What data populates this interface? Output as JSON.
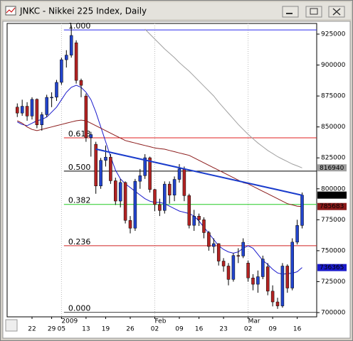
{
  "chart_data": {
    "type": "candlestick",
    "title": "JNKC - Nikkei 225 Index, Daily",
    "up_color": "#2244cc",
    "down_color": "#b22222",
    "open": [
      866000,
      861200,
      866700,
      858800,
      872300,
      851700,
      859900,
      873900,
      874000,
      886000,
      904300,
      908000,
      918000,
      887600,
      875000,
      841300,
      836000,
      802300,
      823000,
      825600,
      806500,
      790100,
      805100,
      774500,
      768200,
      806100,
      810600,
      825100,
      799400,
      787300,
      782500,
      803800,
      794900,
      807600,
      816100,
      794500,
      770500,
      777900,
      775000,
      764600,
      753400,
      755700,
      741600,
      737600,
      726800,
      746100,
      745700,
      740000,
      728000,
      722900,
      729000,
      737000,
      717300,
      708600,
      705400,
      737600,
      719800,
      756900,
      770400
    ],
    "high": [
      869000,
      872000,
      870000,
      874000,
      873000,
      862000,
      876000,
      878000,
      888000,
      906000,
      912000,
      932000,
      920000,
      889000,
      877000,
      846000,
      838000,
      825000,
      835000,
      828000,
      809000,
      808000,
      806000,
      778000,
      808000,
      816000,
      828000,
      826000,
      800000,
      792000,
      806000,
      806000,
      810000,
      820000,
      818000,
      796000,
      783000,
      780000,
      777000,
      766000,
      760000,
      756000,
      744000,
      740000,
      748000,
      752000,
      760000,
      742000,
      731000,
      734000,
      746000,
      740000,
      722000,
      712000,
      740000,
      739000,
      760000,
      775000,
      797000
    ],
    "low": [
      858000,
      859000,
      855000,
      856000,
      849000,
      847000,
      858000,
      866000,
      871000,
      884000,
      898000,
      906000,
      885000,
      874000,
      838000,
      826000,
      796000,
      800000,
      818000,
      804000,
      787000,
      785000,
      772000,
      764000,
      766000,
      800000,
      808000,
      797000,
      782000,
      778000,
      780000,
      788000,
      790000,
      805000,
      790000,
      768000,
      766000,
      770000,
      760000,
      750000,
      748000,
      738000,
      733000,
      722000,
      725000,
      740000,
      744000,
      725000,
      718000,
      716000,
      727000,
      714000,
      705000,
      703000,
      704000,
      716000,
      718000,
      755000,
      768000
    ],
    "close": [
      861200,
      866700,
      858800,
      872300,
      851700,
      859900,
      873900,
      874000,
      886000,
      904300,
      908000,
      923900,
      887600,
      883600,
      841300,
      843800,
      802300,
      823000,
      825600,
      806500,
      790100,
      805100,
      774500,
      768200,
      806100,
      810600,
      825100,
      799400,
      787300,
      782500,
      803800,
      794900,
      807600,
      816100,
      794500,
      770500,
      777900,
      775000,
      764600,
      753400,
      755700,
      741600,
      737600,
      726800,
      746100,
      745700,
      756800,
      728000,
      722900,
      729000,
      743300,
      717300,
      708600,
      705400,
      737600,
      719800,
      756900,
      770400,
      794913
    ],
    "moving_averages": [
      {
        "color": "#1a1acc",
        "values": [
          854000,
          852000,
          851000,
          853000,
          855000,
          856000,
          858000,
          862000,
          866000,
          872000,
          878000,
          882000,
          883700,
          882000,
          878000,
          872000,
          862000,
          850000,
          838000,
          826000,
          815000,
          808000,
          804000,
          801000,
          798000,
          795000,
          792000,
          790000,
          789000,
          789000,
          788000,
          786000,
          784000,
          782000,
          781000,
          780000,
          778000,
          774000,
          769000,
          764000,
          759000,
          754000,
          751000,
          749000,
          748000,
          749000,
          752000,
          754000,
          752000,
          747000,
          742000,
          739000,
          735000,
          732000,
          731000,
          731500,
          731800,
          733000,
          736365
        ]
      },
      {
        "color": "#8b1a1a",
        "values": [
          855000,
          853000,
          850000,
          848000,
          847000,
          848000,
          849000,
          850000,
          851000,
          852000,
          853000,
          854000,
          855000,
          855500,
          855000,
          853000,
          851000,
          849000,
          847000,
          845000,
          843000,
          841000,
          839000,
          838000,
          837000,
          836000,
          835000,
          834000,
          833000,
          832500,
          832000,
          831000,
          830000,
          829000,
          828000,
          827000,
          825000,
          823000,
          821000,
          819000,
          817000,
          815000,
          813000,
          811000,
          809000,
          807000,
          805000,
          804000,
          802000,
          800000,
          798000,
          796000,
          794000,
          792000,
          790000,
          788000,
          787000,
          786000,
          785683
        ]
      },
      {
        "color": "#a0a0a0",
        "values": [
          null,
          null,
          null,
          null,
          null,
          null,
          null,
          null,
          null,
          null,
          null,
          null,
          null,
          null,
          null,
          null,
          null,
          null,
          null,
          null,
          null,
          null,
          null,
          null,
          null,
          null,
          929000,
          925000,
          921000,
          917000,
          913000,
          909500,
          906000,
          902000,
          898500,
          895000,
          891000,
          887000,
          883000,
          879000,
          875000,
          870000,
          865500,
          861000,
          856500,
          852000,
          848000,
          844000,
          840500,
          837000,
          834000,
          831000,
          828500,
          826000,
          824000,
          822000,
          820000,
          818500,
          816940
        ]
      }
    ],
    "trendline": {
      "color": "#1a3ccc",
      "x": [
        16,
        58
      ],
      "y": [
        832100,
        794800
      ]
    },
    "fib_levels": [
      {
        "value": 928400,
        "label": "1.000",
        "color": "#2a2aee"
      },
      {
        "value": 841200,
        "label": "0.618",
        "color": "#e02020"
      },
      {
        "value": 814300,
        "label": "0.500",
        "color": "#000000"
      },
      {
        "value": 787400,
        "label": "0.382",
        "color": "#22cc22"
      },
      {
        "value": 754060,
        "label": "0.236",
        "color": "#d02020"
      },
      {
        "value": 700200,
        "label": "0.000",
        "color": "#404040"
      }
    ],
    "xlim": [
      -2.07,
      60.97
    ],
    "ylim": [
      696556,
      933610
    ],
    "yticks": [
      700000,
      725000,
      750000,
      775000,
      800000,
      825000,
      850000,
      875000,
      900000,
      925000
    ],
    "xticks": [
      {
        "value": 3,
        "label": "22"
      },
      {
        "value": 7,
        "label": "29"
      },
      {
        "value": 9,
        "label": "05"
      },
      {
        "value": 14,
        "label": "13"
      },
      {
        "value": 18,
        "label": "19"
      },
      {
        "value": 23,
        "label": "26"
      },
      {
        "value": 28,
        "label": "02"
      },
      {
        "value": 33,
        "label": "09"
      },
      {
        "value": 37,
        "label": "16"
      },
      {
        "value": 42,
        "label": "23"
      },
      {
        "value": 47,
        "label": "02"
      },
      {
        "value": 52,
        "label": "09"
      },
      {
        "value": 57,
        "label": "16"
      }
    ],
    "month_labels": [
      {
        "value": 9,
        "label": "2009"
      },
      {
        "value": 28,
        "label": "Feb"
      },
      {
        "value": 47,
        "label": "Mar"
      }
    ]
  }
}
